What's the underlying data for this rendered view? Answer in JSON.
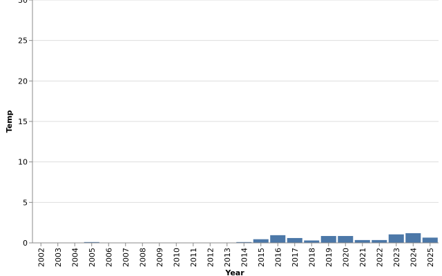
{
  "chart_data": {
    "type": "bar",
    "x_label": "Year",
    "y_label": "Temp",
    "categories": [
      "2002",
      "2003",
      "2004",
      "2005",
      "2006",
      "2007",
      "2008",
      "2009",
      "2010",
      "2011",
      "2012",
      "2013",
      "2014",
      "2015",
      "2016",
      "2017",
      "2018",
      "2019",
      "2020",
      "2021",
      "2022",
      "2023",
      "2024",
      "2025"
    ],
    "values": [
      0,
      0.02,
      0,
      0.1,
      0,
      0,
      0,
      0,
      0.02,
      0,
      0,
      0,
      0.1,
      0.45,
      0.95,
      0.6,
      0.3,
      0.85,
      0.85,
      0.35,
      0.35,
      1.05,
      1.2,
      0.65
    ],
    "color": "#4c78a8",
    "ylim": [
      0,
      30
    ],
    "yticks": [
      0,
      5,
      10,
      15,
      20,
      25,
      30
    ],
    "grid": true
  }
}
